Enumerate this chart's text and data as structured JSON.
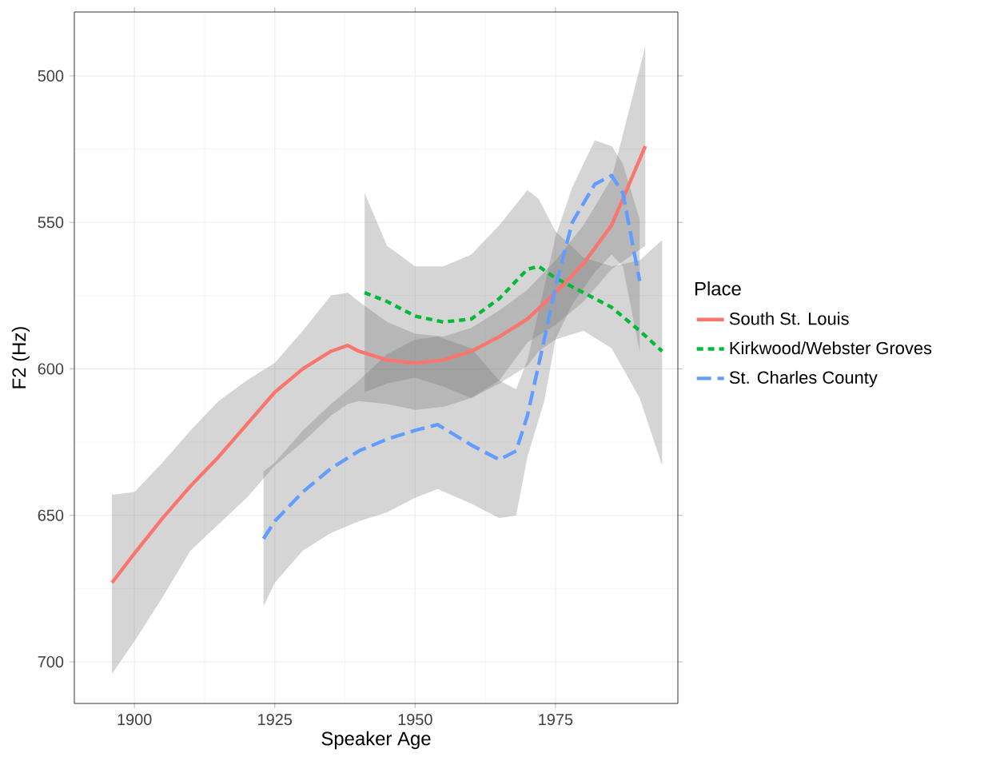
{
  "chart_data": {
    "type": "line",
    "xlabel": "Speaker Age",
    "ylabel": "F2 (Hz)",
    "legend_title": "Place",
    "xlim": [
      1889.3,
      1996.8
    ],
    "ylim": [
      714.2,
      478.2
    ],
    "xticks": [
      1900,
      1925,
      1950,
      1975
    ],
    "yticks": [
      500,
      550,
      600,
      650,
      700
    ],
    "grid": true,
    "legend": "right",
    "series": [
      {
        "name": "South St. Louis",
        "color": "#f8766d",
        "line_style": "solid",
        "x": [
          1896,
          1900,
          1905,
          1910,
          1915,
          1920,
          1925,
          1930,
          1935,
          1938,
          1940,
          1945,
          1950,
          1955,
          1960,
          1965,
          1970,
          1975,
          1980,
          1985,
          1991
        ],
        "values": [
          673,
          663,
          651,
          640,
          630,
          619,
          608,
          600,
          594,
          592,
          594,
          597,
          598,
          597,
          594,
          589,
          583,
          574,
          564,
          551,
          524
        ],
        "lower": [
          643,
          642,
          632,
          621,
          611,
          604,
          598,
          587,
          575,
          574,
          577,
          584,
          588,
          589,
          586,
          580,
          573,
          563,
          551,
          535,
          490
        ],
        "upper": [
          704,
          693,
          678,
          662,
          653,
          644,
          633,
          625,
          616,
          612,
          611,
          612,
          614,
          613,
          610,
          604,
          591,
          585,
          577,
          566,
          558
        ]
      },
      {
        "name": "Kirkwood/Webster Groves",
        "color": "#00ba38",
        "line_style": "dotted",
        "x": [
          1941,
          1945,
          1950,
          1955,
          1960,
          1965,
          1970,
          1972,
          1975,
          1980,
          1985,
          1990,
          1994
        ],
        "values": [
          574,
          577,
          582,
          584,
          583,
          576,
          566,
          565,
          569,
          574,
          579,
          587,
          594
        ],
        "lower": [
          540,
          558,
          565,
          565,
          561,
          551,
          539,
          542,
          553,
          562,
          565,
          563,
          556
        ],
        "upper": [
          608,
          605,
          603,
          606,
          610,
          605,
          599,
          594,
          590,
          587,
          593,
          610,
          633
        ]
      },
      {
        "name": "St. Charles County",
        "color": "#619cff",
        "line_style": "dashed",
        "x": [
          1923,
          1925,
          1930,
          1935,
          1940,
          1945,
          1950,
          1954,
          1960,
          1965,
          1968,
          1970,
          1973,
          1975,
          1978,
          1982,
          1985,
          1987,
          1990
        ],
        "values": [
          658,
          652,
          642,
          634,
          628,
          624,
          621,
          619,
          626,
          631,
          628,
          616,
          590,
          572,
          550,
          537,
          534,
          540,
          570
        ],
        "lower": [
          635,
          632,
          621,
          612,
          604,
          595,
          590,
          589,
          593,
          604,
          607,
          597,
          572,
          555,
          538,
          522,
          524,
          530,
          549
        ],
        "upper": [
          681,
          673,
          662,
          656,
          652,
          649,
          644,
          641,
          646,
          651,
          650,
          630,
          611,
          590,
          578,
          567,
          561,
          565,
          594
        ]
      }
    ]
  }
}
